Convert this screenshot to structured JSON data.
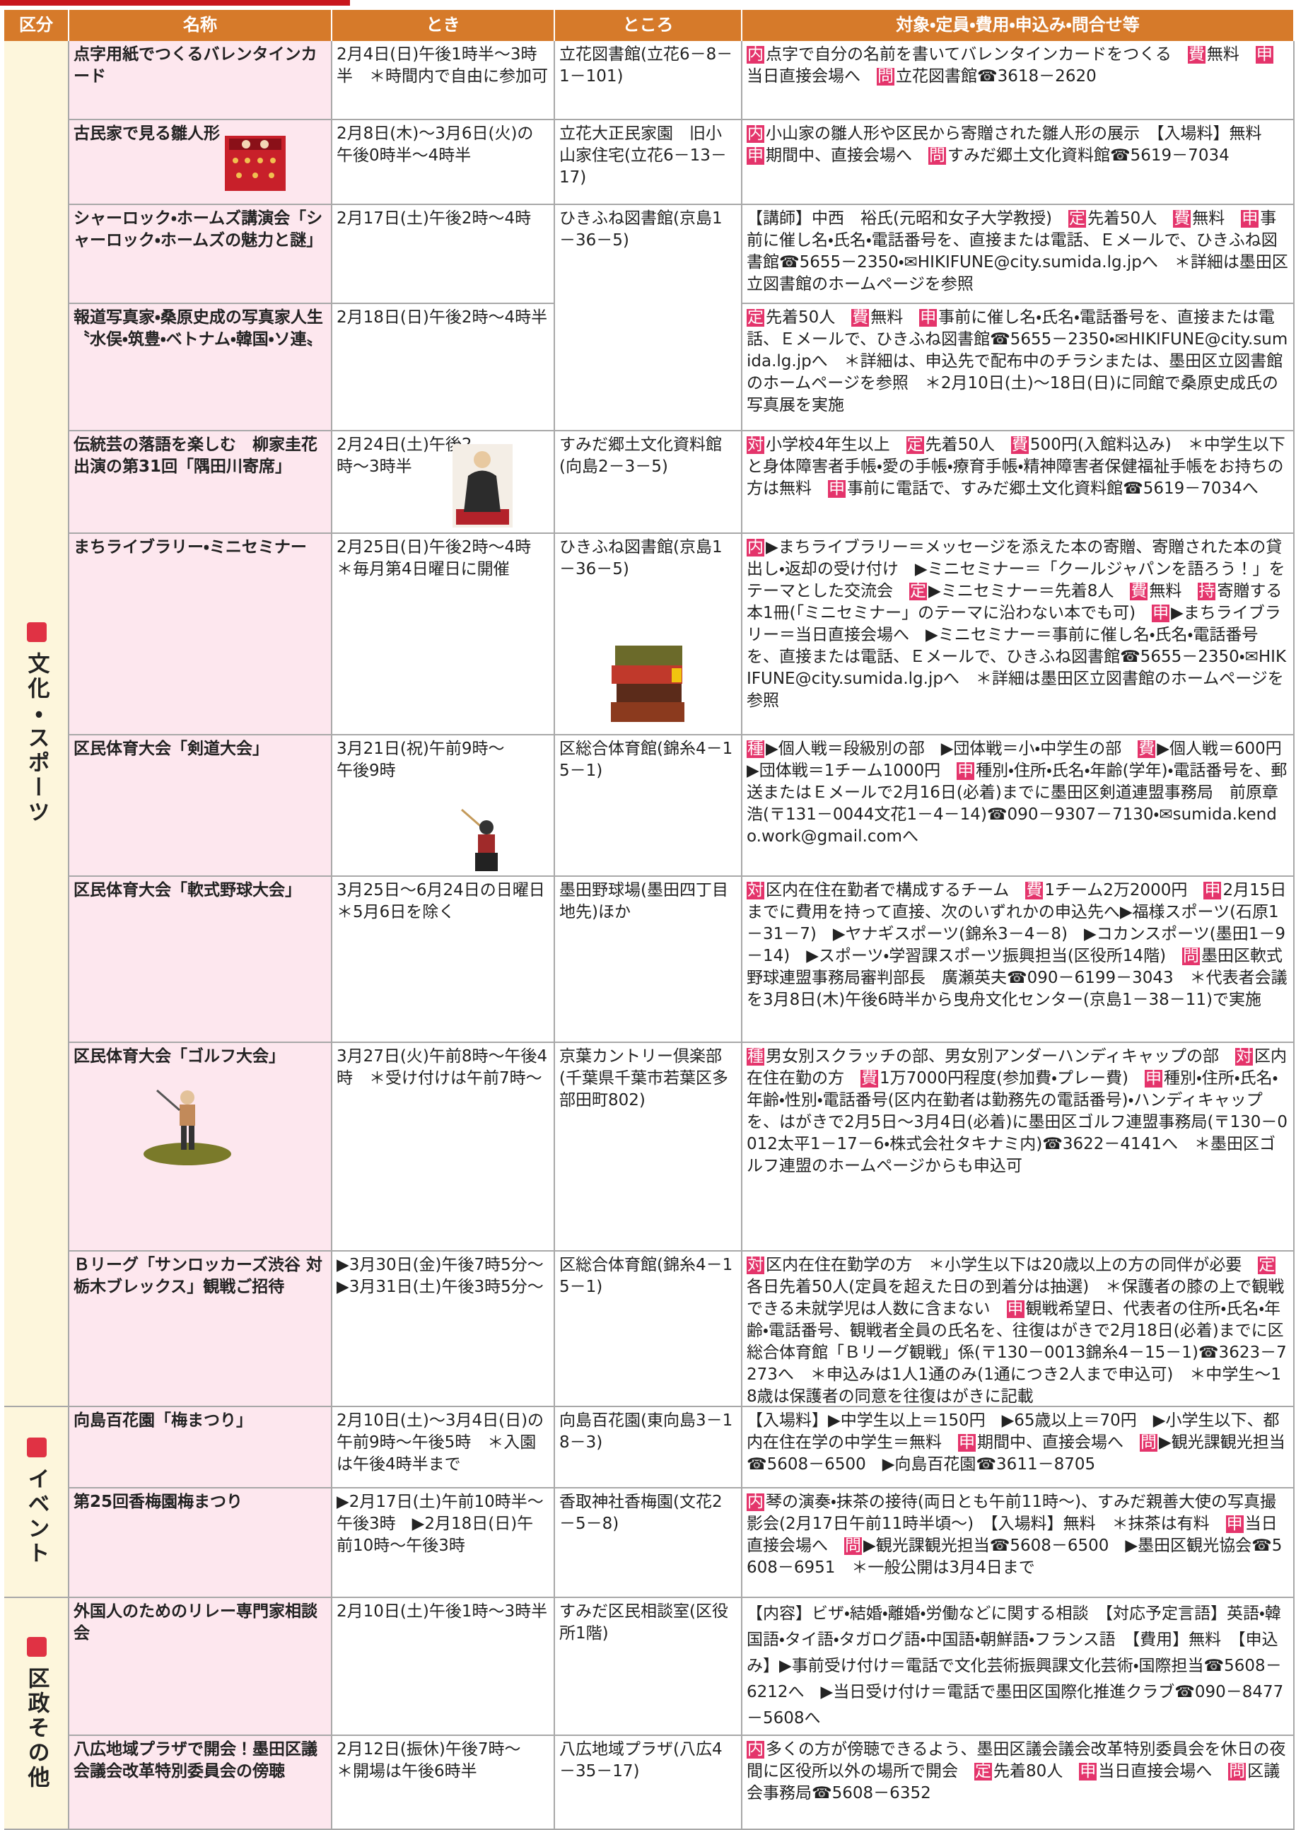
{
  "header": [
    "区分",
    "名称",
    "とき",
    "ところ",
    "対象・定員・費用・申込み・問合せ等"
  ],
  "sections": [
    {
      "label": "文化・スポーツ",
      "rows": [
        {
          "name": "点字用紙でつくるバレンタインカード",
          "when": "2月4日(日)午後1時半～3時半　＊時間内で自由に参加可",
          "where": "立花図書館(立花6－8－1－101)",
          "details": [
            {
              "badge": "内"
            },
            {
              "text": "点字で自分の名前を書いてバレンタインカードをつくる　"
            },
            {
              "badge": "費"
            },
            {
              "text": "無料　"
            },
            {
              "badge": "申"
            },
            {
              "text": "当日直接会場へ　"
            },
            {
              "badge": "問"
            },
            {
              "text": "立花図書館☎3618－2620"
            }
          ]
        },
        {
          "name": "古民家で見る雛人形",
          "when": "2月8日(木)～3月6日(火)の午後0時半～4時半",
          "where": "立花大正民家園　旧小山家住宅(立花6－13－17)",
          "details": [
            {
              "badge": "内"
            },
            {
              "text": "小山家の雛人形や区民から寄贈された雛人形の展示　【入場料】無料　"
            },
            {
              "badge": "申"
            },
            {
              "text": "期間中、直接会場へ　"
            },
            {
              "badge": "問"
            },
            {
              "text": "すみだ郷土文化資料館☎5619－7034"
            }
          ]
        },
        {
          "name": "シャーロック・ホームズ講演会「シャーロック・ホームズの魅力と謎」",
          "when": "2月17日(土)午後2時～4時",
          "where": "ひきふね図書館(京島1－36－5)",
          "details": [
            {
              "text": "【講師】中西　裕氏(元昭和女子大学教授)　"
            },
            {
              "badge": "定"
            },
            {
              "text": "先着50人　"
            },
            {
              "badge": "費"
            },
            {
              "text": "無料　"
            },
            {
              "badge": "申"
            },
            {
              "text": "事前に催し名・氏名・電話番号を、直接または電話、Ｅメールで、ひきふね図書館☎5655－2350・✉HIKIFUNE@city.sumida.lg.jpへ　＊詳細は墨田区立図書館のホームページを参照"
            }
          ]
        },
        {
          "name": "報道写真家・桑原史成の写真家人生〝水俣・筑豊・ベトナム・韓国・ソ連〟",
          "when": "2月18日(日)午後2時～4時半",
          "details": [
            {
              "badge": "定"
            },
            {
              "text": "先着50人　"
            },
            {
              "badge": "費"
            },
            {
              "text": "無料　"
            },
            {
              "badge": "申"
            },
            {
              "text": "事前に催し名・氏名・電話番号を、直接または電話、Ｅメールで、ひきふね図書館☎5655－2350・✉HIKIFUNE@city.sumida.lg.jpへ　＊詳細は、申込先で配布中のチラシまたは、墨田区立図書館のホームページを参照　＊2月10日(土)～18日(日)に同館で桑原史成氏の写真展を実施"
            }
          ]
        },
        {
          "name": "伝統芸の落語を楽しむ　柳家圭花出演の第31回「隅田川寄席」",
          "when": "2月24日(土)午後2時～3時半",
          "where": "すみだ郷土文化資料館(向島2－3－5)",
          "details": [
            {
              "badge": "対"
            },
            {
              "text": "小学校4年生以上　"
            },
            {
              "badge": "定"
            },
            {
              "text": "先着50人　"
            },
            {
              "badge": "費"
            },
            {
              "text": "500円(入館料込み)　＊中学生以下と身体障害者手帳・愛の手帳・療育手帳・精神障害者保健福祉手帳をお持ちの方は無料　"
            },
            {
              "badge": "申"
            },
            {
              "text": "事前に電話で、すみだ郷土文化資料館☎5619－7034へ"
            }
          ]
        },
        {
          "name": "まちライブラリー・ミニセミナー",
          "when": "2月25日(日)午後2時～4時　＊毎月第4日曜日に開催",
          "where": "ひきふね図書館(京島1－36－5)",
          "details": [
            {
              "badge": "内"
            },
            {
              "text": "▶まちライブラリー＝メッセージを添えた本の寄贈、寄贈された本の貸出し・返却の受け付け　▶ミニセミナー＝「クールジャパンを語ろう！」をテーマとした交流会　"
            },
            {
              "badge": "定"
            },
            {
              "text": "▶ミニセミナー＝先着8人　"
            },
            {
              "badge": "費"
            },
            {
              "text": "無料　"
            },
            {
              "badge": "持"
            },
            {
              "text": "寄贈する本1冊(「ミニセミナー」のテーマに沿わない本でも可)　"
            },
            {
              "badge": "申"
            },
            {
              "text": "▶まちライブラリー＝当日直接会場へ　▶ミニセミナー＝事前に催し名・氏名・電話番号を、直接または電話、Ｅメールで、ひきふね図書館☎5655－2350・✉HIKIFUNE@city.sumida.lg.jpへ　＊詳細は墨田区立図書館のホームページを参照"
            }
          ]
        },
        {
          "name": "区民体育大会「剣道大会」",
          "when": "3月21日(祝)午前9時～午後9時",
          "where": "区総合体育館(錦糸4－15－1)",
          "details": [
            {
              "badge": "種"
            },
            {
              "text": "▶個人戦＝段級別の部　▶団体戦＝小・中学生の部　"
            },
            {
              "badge": "費"
            },
            {
              "text": "▶個人戦＝600円　▶団体戦＝1チーム1000円　"
            },
            {
              "badge": "申"
            },
            {
              "text": "種別・住所・氏名・年齢(学年)・電話番号を、郵送またはＥメールで2月16日(必着)までに墨田区剣道連盟事務局　前原章浩(〒131－0044文花1－4－14)☎090－9307－7130・✉sumida.kendo.work@gmail.comへ"
            }
          ]
        },
        {
          "name": "区民体育大会「軟式野球大会」",
          "when": "3月25日～6月24日の日曜日　＊5月6日を除く",
          "where": "墨田野球場(墨田四丁目地先)ほか",
          "details": [
            {
              "badge": "対"
            },
            {
              "text": "区内在住在勤者で構成するチーム　"
            },
            {
              "badge": "費"
            },
            {
              "text": "1チーム2万2000円　"
            },
            {
              "badge": "申"
            },
            {
              "text": "2月15日までに費用を持って直接、次のいずれかの申込先へ▶福様スポーツ(石原1－31－7)　▶ヤナギスポーツ(錦糸3－4－8)　▶コカンスポーツ(墨田1－9－14)　▶スポーツ・学習課スポーツ振興担当(区役所14階)　"
            },
            {
              "badge": "問"
            },
            {
              "text": "墨田区軟式野球連盟事務局審判部長　廣瀬英夫☎090－6199－3043　＊代表者会議を3月8日(木)午後6時半から曳舟文化センター(京島1－38－11)で実施"
            }
          ]
        },
        {
          "name": "区民体育大会「ゴルフ大会」",
          "when": "3月27日(火)午前8時～午後4時　＊受け付けは午前7時～",
          "where": "京葉カントリー倶楽部(千葉県千葉市若葉区多部田町802)",
          "details": [
            {
              "badge": "種"
            },
            {
              "text": "男女別スクラッチの部、男女別アンダーハンディキャップの部　"
            },
            {
              "badge": "対"
            },
            {
              "text": "区内在住在勤の方　"
            },
            {
              "badge": "費"
            },
            {
              "text": "1万7000円程度(参加費・プレー費)　"
            },
            {
              "badge": "申"
            },
            {
              "text": "種別・住所・氏名・年齢・性別・電話番号(区内在勤者は勤務先の電話番号)・ハンディキャップを、はがきで2月5日～3月4日(必着)に墨田区ゴルフ連盟事務局(〒130－0012太平1－17－6・株式会社タキナミ内)☎3622－4141へ　＊墨田区ゴルフ連盟のホームページからも申込可"
            }
          ]
        },
        {
          "name": "Ｂリーグ「サンロッカーズ渋谷 対 栃木ブレックス」観戦ご招待",
          "when": "▶3月30日(金)午後7時5分～　▶3月31日(土)午後3時5分～",
          "where": "区総合体育館(錦糸4－15－1)",
          "details": [
            {
              "badge": "対"
            },
            {
              "text": "区内在住在勤学の方　＊小学生以下は20歳以上の方の同伴が必要　"
            },
            {
              "badge": "定"
            },
            {
              "text": "各日先着50人(定員を超えた日の到着分は抽選)　＊保護者の膝の上で観戦できる未就学児は人数に含まない　"
            },
            {
              "badge": "申"
            },
            {
              "text": "観戦希望日、代表者の住所・氏名・年齢・電話番号、観戦者全員の氏名を、往復はがきで2月18日(必着)までに区総合体育館「Ｂリーグ観戦」係(〒130－0013錦糸4－15－1)☎3623－7273へ　＊申込みは1人1通のみ(1通につき2人まで申込可)　＊中学生～18歳は保護者の同意を往復はがきに記載"
            }
          ]
        }
      ]
    },
    {
      "label": "イベント",
      "rows": [
        {
          "name": "向島百花園「梅まつり」",
          "when": "2月10日(土)～3月4日(日)の午前9時～午後5時　＊入園は午後4時半まで",
          "where": "向島百花園(東向島3－18－3)",
          "details": [
            {
              "text": "【入場料】▶中学生以上＝150円　▶65歳以上＝70円　▶小学生以下、都内在住在学の中学生＝無料　"
            },
            {
              "badge": "申"
            },
            {
              "text": "期間中、直接会場へ　"
            },
            {
              "badge": "問"
            },
            {
              "text": "▶観光課観光担当☎5608－6500　▶向島百花園☎3611－8705"
            }
          ]
        },
        {
          "name": "第25回香梅園梅まつり",
          "when": "▶2月17日(土)午前10時半～午後3時　▶2月18日(日)午前10時～午後3時",
          "where": "香取神社香梅園(文花2－5－8)",
          "details": [
            {
              "badge": "内"
            },
            {
              "text": "琴の演奏・抹茶の接待(両日とも午前11時～)、すみだ親善大使の写真撮影会(2月17日午前11時半頃～)　【入場料】無料　＊抹茶は有料　"
            },
            {
              "badge": "申"
            },
            {
              "text": "当日直接会場へ　"
            },
            {
              "badge": "問"
            },
            {
              "text": "▶観光課観光担当☎5608－6500　▶墨田区観光協会☎5608－6951　＊一般公開は3月4日まで"
            }
          ]
        }
      ]
    },
    {
      "label": "区政その他",
      "rows": [
        {
          "name": "外国人のためのリレー専門家相談会",
          "when": "2月10日(土)午後1時～3時半",
          "where": "すみだ区民相談室(区役所1階)",
          "details": [
            {
              "text": "【内容】ビザ・結婚・離婚・労働などに関する相談　【対応予定言語】英語・韓国語・タイ語・タガログ語・中国語・朝鮮語・フランス語　【費用】無料　【申込み】▶事前受け付け＝電話で文化芸術振興課文化芸術・国際担当☎5608－6212へ　▶当日受け付け＝電話で墨田区国際化推進クラブ☎090－8477－5608へ"
            }
          ]
        },
        {
          "name": "八広地域プラザで開会！墨田区議会議会改革特別委員会の傍聴",
          "when": "2月12日(振休)午後7時～　＊開場は午後6時半",
          "where": "八広地域プラザ(八広4－35－17)",
          "details": [
            {
              "badge": "内"
            },
            {
              "text": "多くの方が傍聴できるよう、墨田区議会議会改革特別委員会を休日の夜間に区役所以外の場所で開会　"
            },
            {
              "badge": "定"
            },
            {
              "text": "先着80人　"
            },
            {
              "badge": "申"
            },
            {
              "text": "当日直接会場へ　"
            },
            {
              "badge": "問"
            },
            {
              "text": "区議会事務局☎5608－6352"
            }
          ]
        }
      ]
    }
  ]
}
